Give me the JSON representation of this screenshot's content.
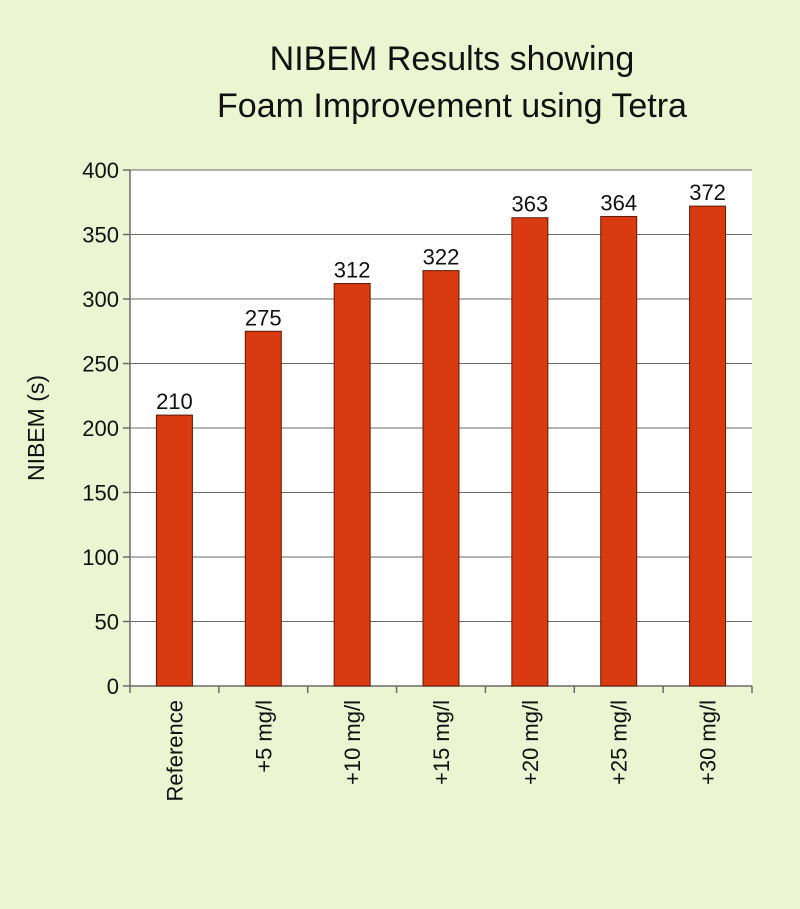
{
  "colors": {
    "background": "#ebf5d2",
    "plot_area": "#ffffff",
    "bar_fill": "#d93a10",
    "bar_stroke": "#5a1a08",
    "grid": "#6a6a6a",
    "text": "#111111"
  },
  "chart_data": {
    "type": "bar",
    "title_lines": [
      "NIBEM Results showing",
      "Foam Improvement using Tetra"
    ],
    "xlabel": "",
    "ylabel": "NIBEM (s)",
    "ylim": [
      0,
      400
    ],
    "yticks": [
      0,
      50,
      100,
      150,
      200,
      250,
      300,
      350,
      400
    ],
    "grid": true,
    "legend": "none",
    "categories": [
      "Reference",
      "+5   mg/l",
      "+10   mg/l",
      "+15   mg/l",
      "+20   mg/l",
      "+25   mg/l",
      "+30   mg/l"
    ],
    "values": [
      210,
      275,
      312,
      322,
      363,
      364,
      372
    ],
    "data_labels": [
      "210",
      "275",
      "312",
      "322",
      "363",
      "364",
      "372"
    ]
  }
}
